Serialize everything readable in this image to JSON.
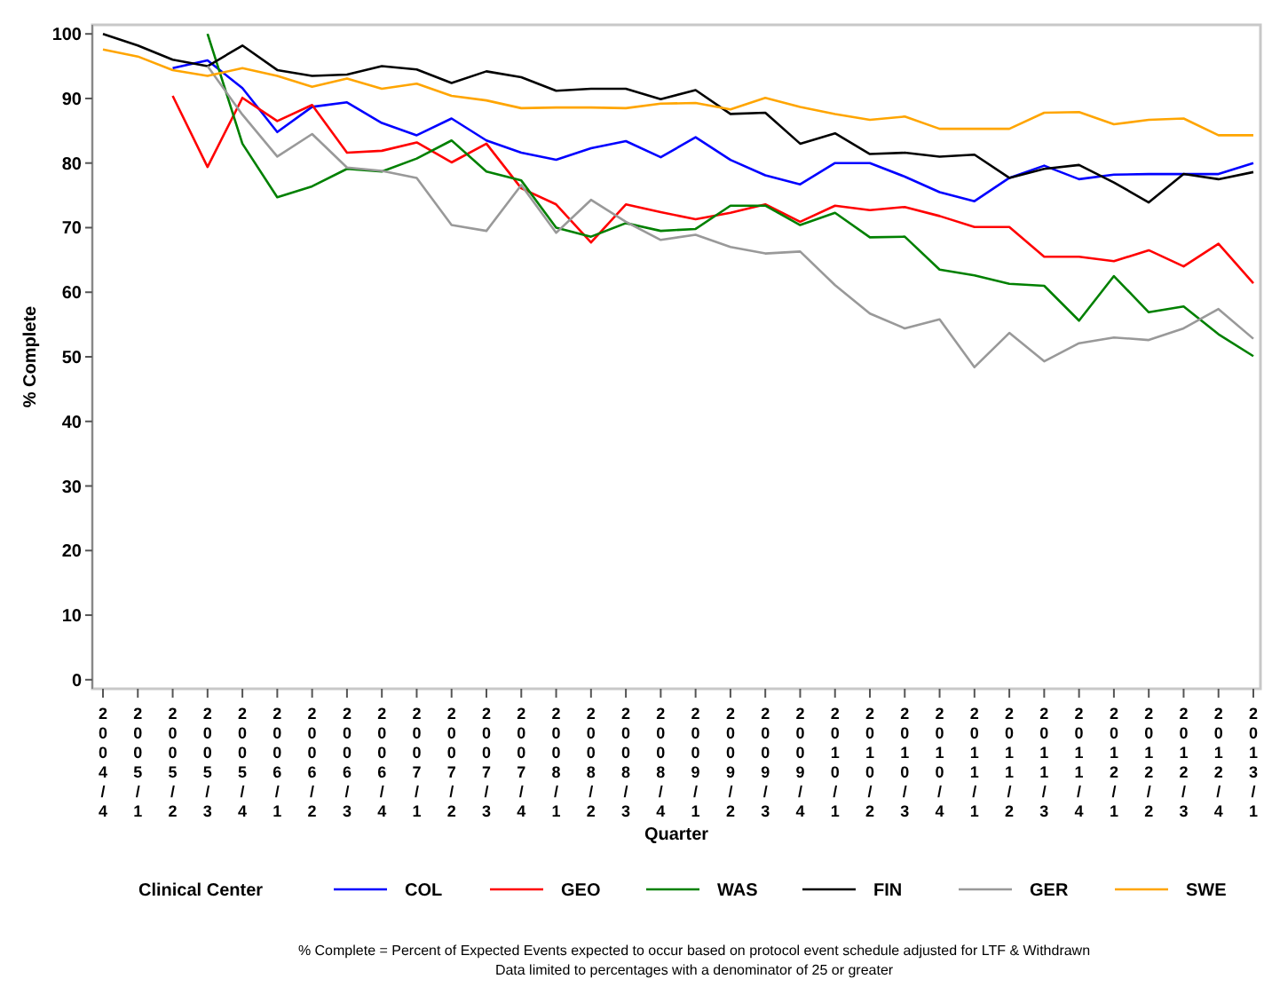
{
  "chart_data": {
    "type": "line",
    "xlabel": "Quarter",
    "ylabel": "% Complete",
    "legend_title": "Clinical Center",
    "legend": "bottom",
    "grid": false,
    "line_style": "solid",
    "categories": [
      "2004/4",
      "2005/1",
      "2005/2",
      "2005/3",
      "2005/4",
      "2006/1",
      "2006/2",
      "2006/3",
      "2006/4",
      "2007/1",
      "2007/2",
      "2007/3",
      "2007/4",
      "2008/1",
      "2008/2",
      "2008/3",
      "2008/4",
      "2009/1",
      "2009/2",
      "2009/3",
      "2009/4",
      "2010/1",
      "2010/2",
      "2010/3",
      "2010/4",
      "2011/1",
      "2011/2",
      "2011/3",
      "2011/4",
      "2012/1",
      "2012/2",
      "2012/3",
      "2012/4",
      "2013/1"
    ],
    "ylim": [
      -1.4,
      101.4
    ],
    "yticks": [
      0,
      10,
      20,
      30,
      40,
      50,
      60,
      70,
      80,
      90,
      100
    ],
    "series": [
      {
        "name": "COL",
        "color": "#0000ff",
        "values": [
          null,
          null,
          94.7,
          95.9,
          91.6,
          84.8,
          88.7,
          89.4,
          86.2,
          84.3,
          86.9,
          83.5,
          81.6,
          80.5,
          82.3,
          83.4,
          80.9,
          84,
          80.5,
          78.1,
          76.7,
          80,
          80,
          77.9,
          75.5,
          74.1,
          77.7,
          79.6,
          77.5,
          78.2,
          78.3,
          78.3,
          78.3,
          80
        ]
      },
      {
        "name": "GEO",
        "color": "#ff0000",
        "values": [
          null,
          null,
          90.4,
          79.4,
          90.1,
          86.5,
          89,
          81.6,
          81.9,
          83.2,
          80.1,
          83,
          76.1,
          73.6,
          67.7,
          73.6,
          72.4,
          71.3,
          72.3,
          73.6,
          70.9,
          73.4,
          72.7,
          73.2,
          71.8,
          70.1,
          70.1,
          65.5,
          65.5,
          64.8,
          66.5,
          64,
          67.5,
          61.4
        ]
      },
      {
        "name": "WAS",
        "color": "#008000",
        "values": [
          null,
          null,
          null,
          100,
          83,
          74.7,
          76.4,
          79.1,
          78.7,
          80.7,
          83.5,
          78.7,
          77.3,
          70,
          68.6,
          70.7,
          69.5,
          69.8,
          73.4,
          73.4,
          70.4,
          72.3,
          68.5,
          68.6,
          63.5,
          62.6,
          61.3,
          61,
          55.6,
          62.5,
          56.9,
          57.8,
          53.5,
          50.1
        ]
      },
      {
        "name": "FIN",
        "color": "#000000",
        "values": [
          100,
          98.2,
          96,
          95,
          98.2,
          94.4,
          93.5,
          93.7,
          95,
          94.5,
          92.4,
          94.2,
          93.3,
          91.2,
          91.5,
          91.5,
          89.9,
          91.3,
          87.6,
          87.8,
          83,
          84.6,
          81.4,
          81.6,
          81,
          81.3,
          77.7,
          79.1,
          79.7,
          77,
          73.9,
          78.3,
          77.5,
          78.6
        ]
      },
      {
        "name": "GER",
        "color": "#999999",
        "values": [
          null,
          null,
          null,
          95,
          87.5,
          81,
          84.5,
          79.3,
          78.8,
          77.7,
          70.4,
          69.5,
          76.6,
          69.2,
          74.3,
          70.9,
          68.1,
          68.9,
          67,
          66,
          66.3,
          61.1,
          56.7,
          54.4,
          55.8,
          48.4,
          53.7,
          49.3,
          52.1,
          53,
          52.6,
          54.4,
          57.4,
          52.8
        ]
      },
      {
        "name": "SWE",
        "color": "#ffa500",
        "values": [
          97.6,
          96.5,
          94.4,
          93.5,
          94.7,
          93.5,
          91.8,
          93.1,
          91.5,
          92.3,
          90.4,
          89.7,
          88.5,
          88.6,
          88.6,
          88.5,
          89.2,
          89.3,
          88.3,
          90.1,
          88.7,
          87.6,
          86.7,
          87.2,
          85.3,
          85.3,
          85.3,
          87.8,
          87.9,
          86,
          86.7,
          86.9,
          84.3,
          84.3
        ]
      }
    ],
    "annotations": [
      "% Complete = Percent of Expected Events expected to occur based on protocol event schedule adjusted for LTF & Withdrawn",
      "Data limited to percentages with a denominator of 25 or greater"
    ]
  }
}
